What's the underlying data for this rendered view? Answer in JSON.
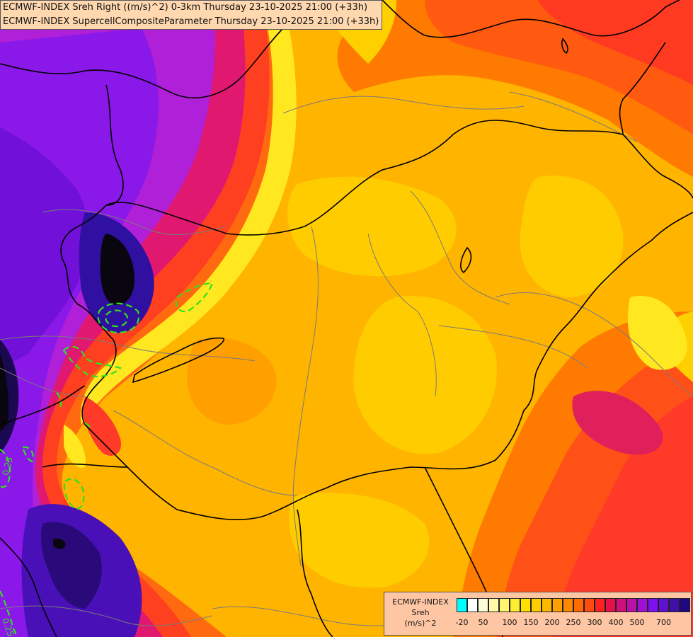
{
  "header": {
    "line1": "ECMWF-INDEX Sreh Right ((m/s)^2) 0-3km Thursday 23-10-2025 21:00 (+33h)",
    "line2": "ECMWF-INDEX SupercellCompositeParameter Thursday 23-10-2025 21:00 (+33h)"
  },
  "legend": {
    "source": "ECMWF-INDEX",
    "variable": "Sreh",
    "unit": "(m/s)^2",
    "colors": [
      "#00ffff",
      "#ffffff",
      "#fffcd8",
      "#fff8a8",
      "#fff470",
      "#ffee30",
      "#ffe000",
      "#ffcc00",
      "#ffb800",
      "#ffa000",
      "#ff8800",
      "#ff6a00",
      "#ff4a10",
      "#ff2020",
      "#e8104a",
      "#d0107a",
      "#b810a8",
      "#a010d0",
      "#8010f0",
      "#6010d0",
      "#4010a8",
      "#200880"
    ],
    "ticks": [
      {
        "label": "-20",
        "index": 0.5
      },
      {
        "label": "50",
        "index": 2.5
      },
      {
        "label": "100",
        "index": 5
      },
      {
        "label": "150",
        "index": 7
      },
      {
        "label": "200",
        "index": 9
      },
      {
        "label": "250",
        "index": 11
      },
      {
        "label": "300",
        "index": 13
      },
      {
        "label": "400",
        "index": 15
      },
      {
        "label": "500",
        "index": 17
      },
      {
        "label": "700",
        "index": 19.5
      }
    ]
  },
  "contour_labels": [
    "0.25",
    "0.25"
  ],
  "palette": {
    "dark": "#0a0610",
    "navy": "#2a0a7a",
    "indigo": "#4a10b8",
    "violet": "#8a18e8",
    "purple": "#b020d8",
    "magenta": "#d81890",
    "crimson": "#f02848",
    "red": "#ff4020",
    "orangered": "#ff6a10",
    "orange": "#ff9a00",
    "amber": "#ffb400",
    "gold": "#ffcc00",
    "yellow": "#ffec20",
    "paleyellow": "#fff7a0",
    "contour": "#30e020"
  }
}
